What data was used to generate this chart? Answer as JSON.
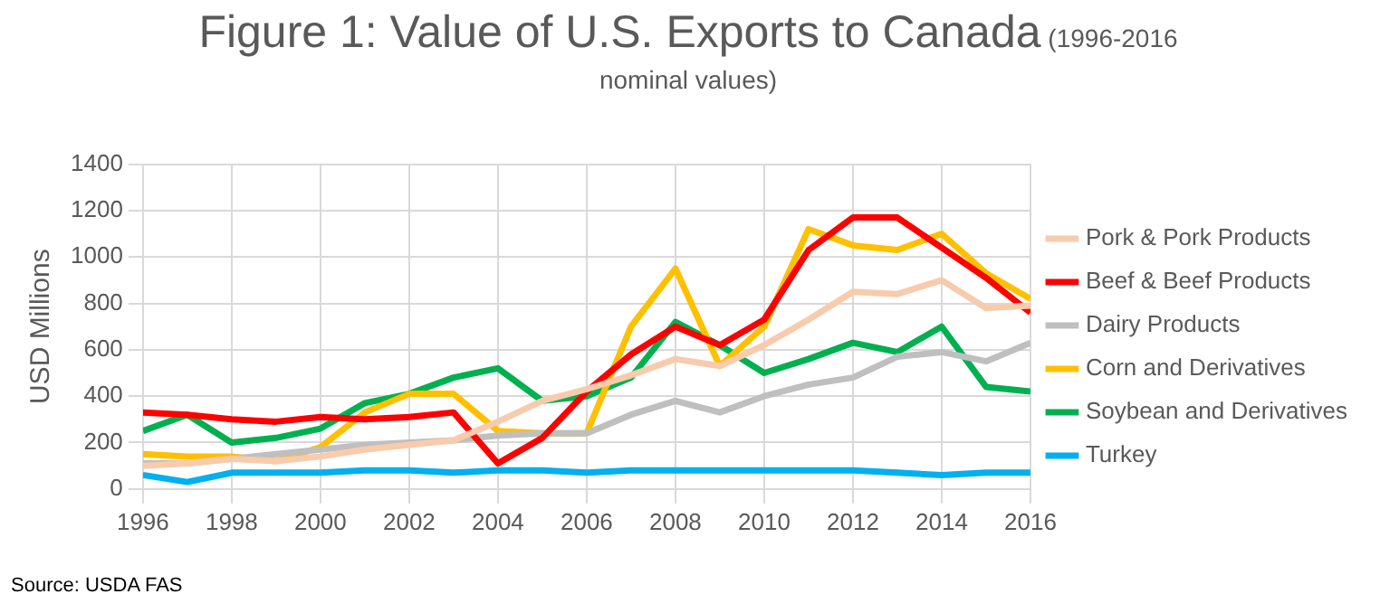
{
  "chart_data": {
    "type": "line",
    "title": "Figure 1: Value of U.S. Exports to Canada",
    "subtitle": "(1996-2016 nominal values)",
    "ylabel": "USD Millions",
    "annotations": [
      "Source: USDA FAS"
    ],
    "x": [
      1996,
      1997,
      1998,
      1999,
      2000,
      2001,
      2002,
      2003,
      2004,
      2005,
      2006,
      2007,
      2008,
      2009,
      2010,
      2011,
      2012,
      2013,
      2014,
      2015,
      2016
    ],
    "xlim": [
      1996,
      2016
    ],
    "xticks": [
      1996,
      1998,
      2000,
      2002,
      2004,
      2006,
      2008,
      2010,
      2012,
      2014,
      2016
    ],
    "ylim": [
      0,
      1400
    ],
    "yticks": [
      0,
      200,
      400,
      600,
      800,
      1000,
      1200,
      1400
    ],
    "grid": true,
    "legend": "right",
    "marker": "none",
    "line_style": "solid",
    "series": [
      {
        "name": "Pork & Pork Products",
        "color": "#f8cbad",
        "values": [
          100,
          110,
          130,
          120,
          140,
          170,
          190,
          210,
          290,
          380,
          430,
          490,
          560,
          530,
          620,
          730,
          850,
          840,
          900,
          780,
          790
        ]
      },
      {
        "name": "Beef & Beef Products",
        "color": "#ff0000",
        "values": [
          330,
          320,
          300,
          290,
          310,
          300,
          310,
          330,
          110,
          220,
          420,
          580,
          700,
          620,
          730,
          1030,
          1170,
          1170,
          1040,
          910,
          760
        ]
      },
      {
        "name": "Dairy Products",
        "color": "#bfbfbf",
        "values": [
          110,
          110,
          130,
          150,
          170,
          190,
          200,
          210,
          230,
          240,
          240,
          320,
          380,
          330,
          400,
          450,
          480,
          570,
          590,
          550,
          630
        ]
      },
      {
        "name": "Corn and Derivatives",
        "color": "#ffc000",
        "values": [
          150,
          140,
          140,
          120,
          180,
          330,
          410,
          410,
          250,
          240,
          240,
          700,
          950,
          530,
          700,
          1120,
          1050,
          1030,
          1100,
          930,
          820
        ]
      },
      {
        "name": "Soybean and Derivatives",
        "color": "#00b050",
        "values": [
          250,
          320,
          200,
          220,
          260,
          370,
          410,
          480,
          520,
          380,
          400,
          480,
          720,
          620,
          500,
          560,
          630,
          590,
          700,
          440,
          420
        ]
      },
      {
        "name": "Turkey",
        "color": "#00b0f0",
        "values": [
          60,
          30,
          70,
          70,
          70,
          80,
          80,
          70,
          80,
          80,
          70,
          80,
          80,
          80,
          80,
          80,
          80,
          70,
          60,
          70,
          70
        ]
      }
    ]
  }
}
